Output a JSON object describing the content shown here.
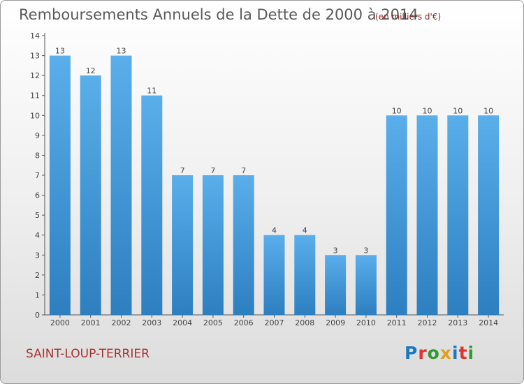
{
  "header": {
    "title": "Remboursements Annuels de la Dette de 2000 à 2014",
    "unit": "(en milliers d'€)"
  },
  "footer": {
    "commune": "SAINT-LOUP-TERRIER",
    "logo_text": "Proxiti",
    "logo_letter_colors": [
      "#1a78c2",
      "#e0342b",
      "#2f9a32",
      "#e0a020",
      "#1a78c2",
      "#e0342b",
      "#2f9a32"
    ]
  },
  "colors": {
    "bar_light": "#5aaeea",
    "bar_dark": "#2d7fc0",
    "axis": "#555555",
    "label": "#444444",
    "title": "#5a5a5a",
    "commune": "#a83232"
  },
  "chart_data": {
    "type": "bar",
    "title": "Remboursements Annuels de la Dette de 2000 à 2014",
    "categories": [
      "2000",
      "2001",
      "2002",
      "2003",
      "2004",
      "2005",
      "2006",
      "2007",
      "2008",
      "2009",
      "2010",
      "2011",
      "2012",
      "2013",
      "2014"
    ],
    "values": [
      13,
      12,
      13,
      11,
      7,
      7,
      7,
      4,
      4,
      3,
      3,
      10,
      10,
      10,
      10
    ],
    "ylim": [
      0,
      14
    ],
    "yticks": [
      0,
      1,
      2,
      3,
      4,
      5,
      6,
      7,
      8,
      9,
      10,
      11,
      12,
      13,
      14
    ],
    "grid": false,
    "legend": "none"
  }
}
